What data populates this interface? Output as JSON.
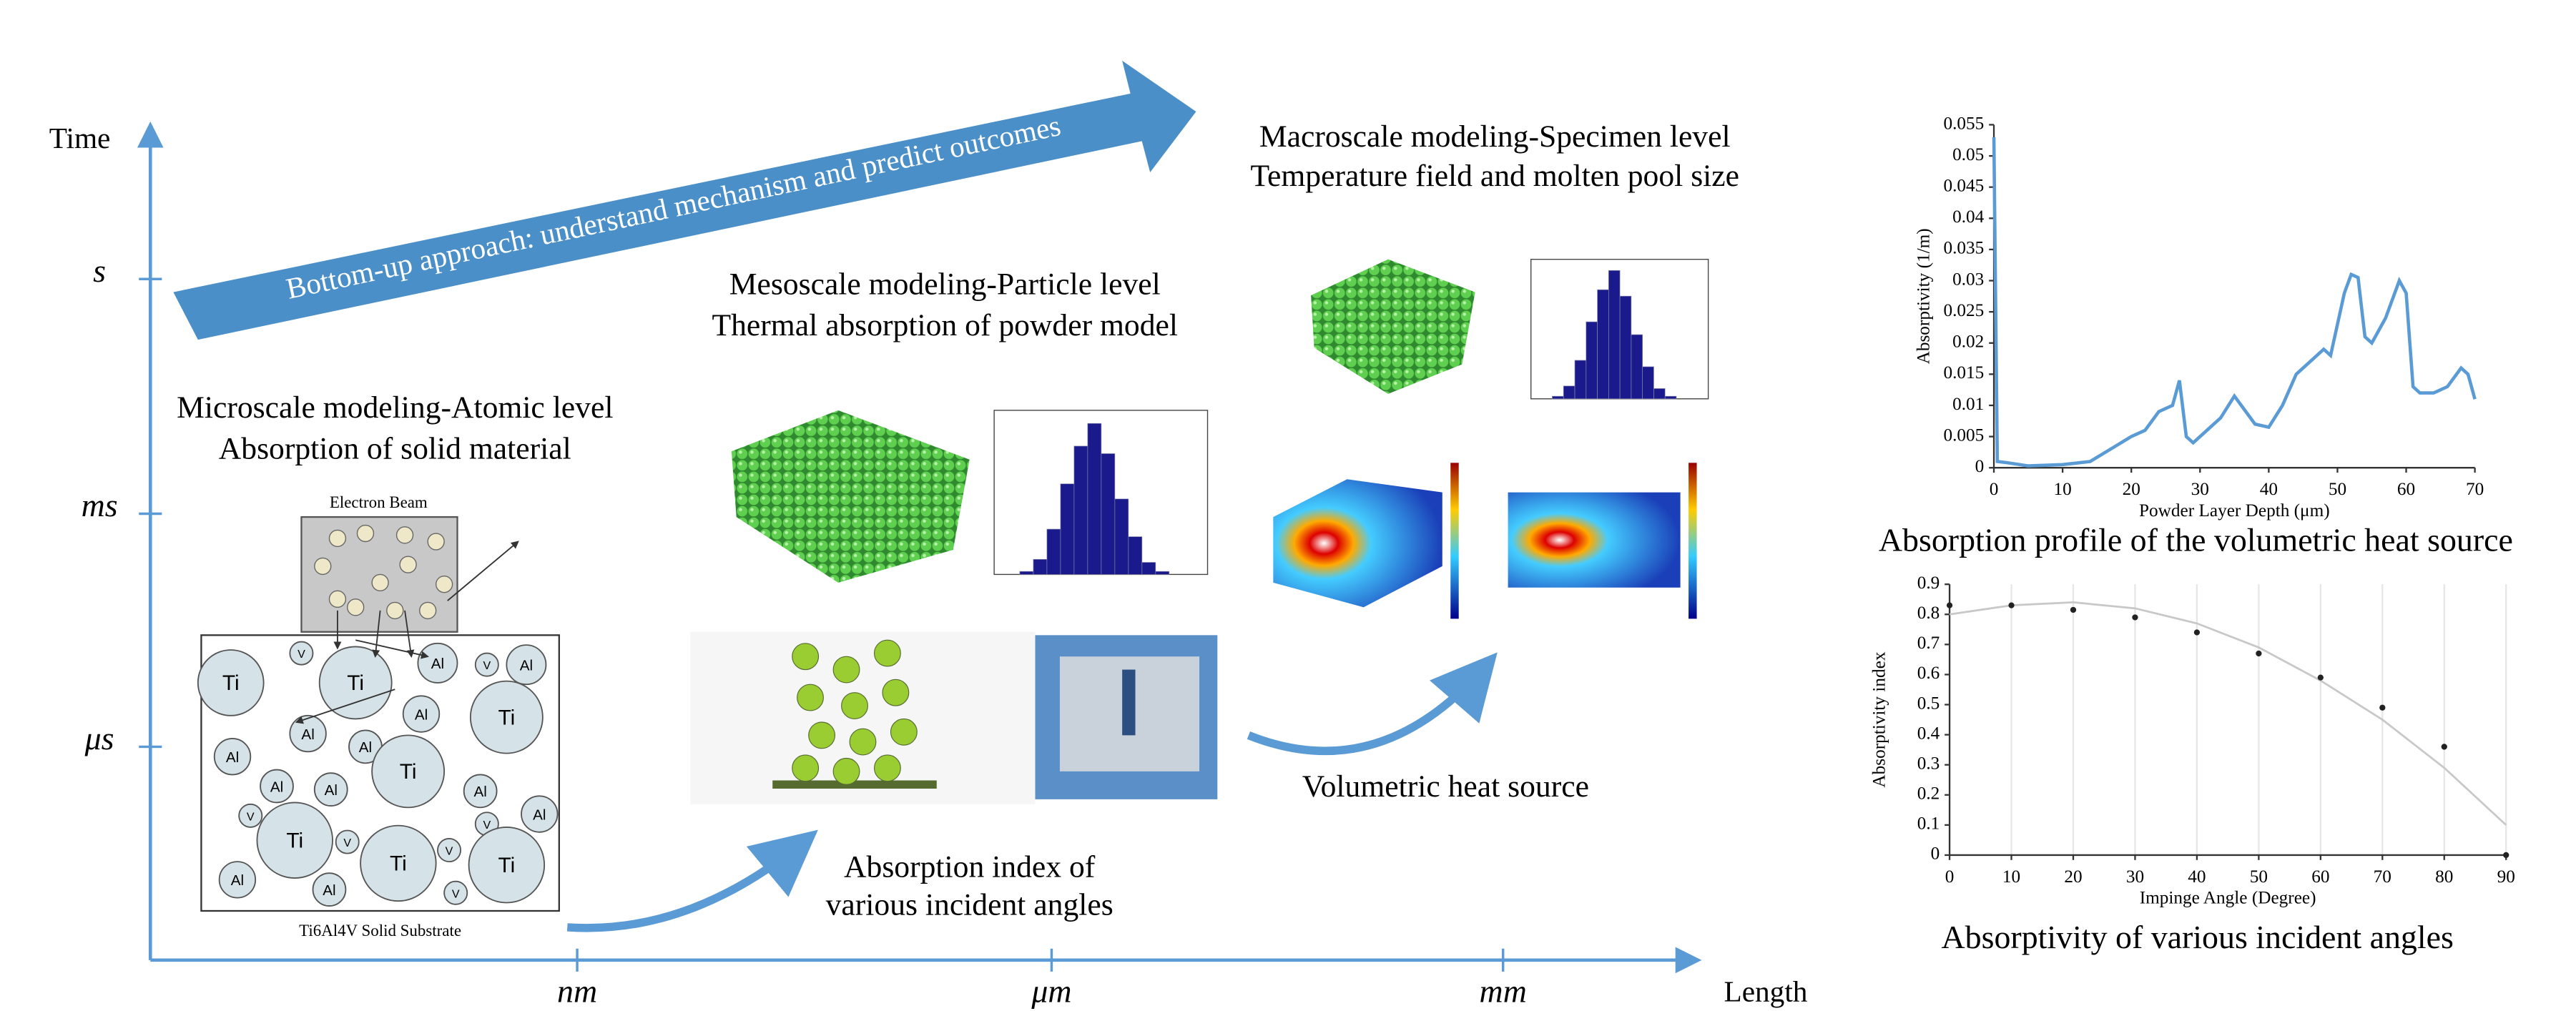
{
  "axes": {
    "y_label": "Time",
    "y_ticks": [
      "s",
      "ms",
      "μs"
    ],
    "x_label": "Length",
    "x_ticks": [
      "nm",
      "μm",
      "mm"
    ]
  },
  "arrow_text": "Bottom-up approach: understand mechanism and predict outcomes",
  "micro": {
    "title": [
      "Microscale modeling-Atomic level",
      "Absorption of solid material"
    ],
    "beam": "Electron Beam",
    "substrate": "Ti6Al4V Solid Substrate",
    "atoms": [
      "Ti",
      "Ti",
      "V",
      "Al",
      "V",
      "Al",
      "Ti",
      "Al",
      "Al",
      "Al",
      "Al",
      "V",
      "Al",
      "Al",
      "Ti",
      "Al",
      "V",
      "Al",
      "Al",
      "Ti",
      "V",
      "Ti",
      "V",
      "Ti",
      "Al",
      "V"
    ]
  },
  "meso": {
    "title": [
      "Mesoscale modeling-Particle level",
      "Thermal absorption of powder model"
    ],
    "caption": [
      "Absorption index of",
      "various incident angles"
    ]
  },
  "macro": {
    "title": [
      "Macroscale modeling-Specimen level",
      "Temperature field and molten pool size"
    ],
    "caption": "Volumetric heat source"
  },
  "absorption_profile": {
    "type": "line",
    "caption": "Absorption profile of the volumetric heat source",
    "x_label": "Powder Layer Depth (μm)",
    "y_label": "Absorptivity (1/m)",
    "color": "#5b9bd5",
    "x": [
      0,
      0.5,
      2,
      5,
      10,
      14,
      17,
      20,
      22,
      24,
      26,
      27,
      28,
      29,
      31,
      33,
      35,
      36,
      38,
      40,
      42,
      44,
      46,
      48,
      49,
      51,
      52,
      53,
      54,
      55,
      57,
      59,
      60,
      61,
      62,
      64,
      66,
      68,
      69,
      70
    ],
    "values": [
      0.053,
      0.001,
      0.0008,
      0.0003,
      0.0005,
      0.001,
      0.003,
      0.005,
      0.006,
      0.009,
      0.01,
      0.014,
      0.005,
      0.004,
      0.006,
      0.008,
      0.0115,
      0.01,
      0.007,
      0.0065,
      0.01,
      0.015,
      0.017,
      0.019,
      0.018,
      0.028,
      0.031,
      0.0305,
      0.021,
      0.02,
      0.024,
      0.03,
      0.028,
      0.013,
      0.012,
      0.012,
      0.013,
      0.016,
      0.015,
      0.011
    ],
    "xlim": [
      0,
      70
    ],
    "xticks": [
      0,
      10,
      20,
      30,
      40,
      50,
      60,
      70
    ],
    "ylim": [
      0,
      0.055
    ],
    "yticks": [
      0,
      0.005,
      0.01,
      0.015,
      0.02,
      0.025,
      0.03,
      0.035,
      0.04,
      0.045,
      0.05,
      0.055
    ]
  },
  "absorptivity_chart": {
    "type": "scatter",
    "caption": "Absorptivity of various incident angles",
    "x_label": "Impinge Angle (Degree)",
    "y_label": "Absorptivity index",
    "grid": true,
    "x": [
      0,
      10,
      20,
      30,
      40,
      50,
      60,
      70,
      80,
      90
    ],
    "series": [
      {
        "color": "#222222",
        "values": [
          0.83,
          0.83,
          0.815,
          0.79,
          0.74,
          0.67,
          0.59,
          0.49,
          0.36,
          0
        ]
      },
      {
        "color": "#c8c8c8",
        "values": [
          0.8,
          0.83,
          0.84,
          0.82,
          0.77,
          0.69,
          0.58,
          0.45,
          0.29,
          0.1
        ]
      }
    ],
    "xlim": [
      0,
      90
    ],
    "xticks": [
      0,
      10,
      20,
      30,
      40,
      50,
      60,
      70,
      80,
      90
    ],
    "ylim": [
      0,
      0.9
    ],
    "yticks": [
      0,
      0.1,
      0.2,
      0.3,
      0.4,
      0.5,
      0.6,
      0.7,
      0.8,
      0.9
    ]
  }
}
